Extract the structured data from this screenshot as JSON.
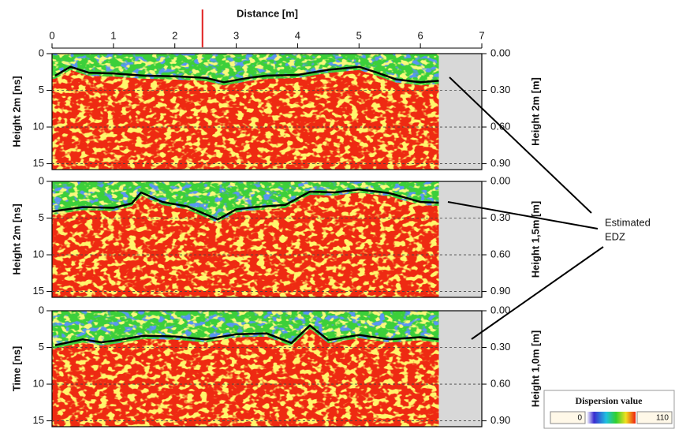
{
  "chart_data": [
    {
      "type": "line",
      "x_label": "Distance [m]",
      "xlim": [
        0,
        7
      ],
      "xticks": [
        0,
        1,
        2,
        3,
        4,
        5,
        6,
        7
      ],
      "marker_x": 2.45,
      "marker_color": "#e02020",
      "scan_end": 6.3,
      "y_inverted": true,
      "grid": true,
      "y_label": "Height 2m [ns]",
      "ylim": [
        0,
        15.8
      ],
      "yticks": [
        0,
        5,
        10,
        15
      ],
      "y2_label": "Height 2m [m]",
      "y2lim": [
        0,
        0.948
      ],
      "y2ticks": [
        {
          "value": 0,
          "label": "0.00"
        },
        {
          "value": 0.3,
          "label": "0.30"
        },
        {
          "value": 0.6,
          "label": "0.60"
        },
        {
          "value": 0.9,
          "label": "0.90"
        }
      ],
      "series": [
        {
          "color": "#000000",
          "x": [
            0.05,
            0.3,
            0.6,
            1.0,
            1.5,
            2.0,
            2.5,
            2.8,
            3.2,
            3.5,
            4.0,
            4.5,
            5.0,
            5.3,
            5.6,
            6.0,
            6.3
          ],
          "values": [
            3.0,
            1.8,
            2.6,
            2.7,
            3.0,
            3.1,
            3.3,
            3.9,
            3.3,
            3.0,
            2.9,
            2.2,
            1.8,
            2.6,
            3.5,
            3.9,
            3.7
          ]
        }
      ]
    },
    {
      "type": "line",
      "xlim": [
        0,
        7
      ],
      "scan_end": 6.3,
      "y_inverted": true,
      "grid": true,
      "y_label": "Height 2m [ns]",
      "ylim": [
        0,
        15.8
      ],
      "yticks": [
        0,
        5,
        10,
        15
      ],
      "y2_label": "Height 1,5m [m]",
      "y2lim": [
        0,
        0.948
      ],
      "y2ticks": [
        {
          "value": 0,
          "label": "0.00"
        },
        {
          "value": 0.3,
          "label": "0.30"
        },
        {
          "value": 0.6,
          "label": "0.60"
        },
        {
          "value": 0.9,
          "label": "0.90"
        }
      ],
      "series": [
        {
          "color": "#000000",
          "x": [
            0.0,
            0.5,
            1.0,
            1.3,
            1.45,
            1.8,
            2.2,
            2.7,
            3.0,
            3.3,
            3.8,
            4.2,
            4.6,
            5.0,
            5.5,
            6.0,
            6.3
          ],
          "values": [
            4.1,
            3.5,
            3.6,
            3.0,
            1.5,
            2.8,
            3.4,
            5.2,
            3.8,
            3.5,
            3.2,
            1.4,
            1.5,
            1.1,
            1.6,
            2.8,
            2.9
          ]
        }
      ]
    },
    {
      "type": "line",
      "xlim": [
        0,
        7
      ],
      "scan_end": 6.3,
      "y_inverted": true,
      "grid": true,
      "y_label": "Time [ns]",
      "ylim": [
        0,
        15.8
      ],
      "yticks": [
        0,
        5,
        10,
        15
      ],
      "y2_label": "Height 1,0m [m]",
      "y2lim": [
        0,
        0.948
      ],
      "y2ticks": [
        {
          "value": 0,
          "label": "0.00"
        },
        {
          "value": 0.3,
          "label": "0.30"
        },
        {
          "value": 0.6,
          "label": "0.60"
        },
        {
          "value": 0.9,
          "label": "0.90"
        }
      ],
      "series": [
        {
          "color": "#000000",
          "x": [
            0.05,
            0.5,
            0.8,
            1.0,
            1.5,
            2.0,
            2.5,
            3.0,
            3.5,
            3.9,
            4.2,
            4.5,
            5.0,
            5.5,
            6.0,
            6.3
          ],
          "values": [
            4.7,
            3.9,
            4.3,
            4.1,
            3.4,
            3.5,
            3.9,
            3.2,
            3.1,
            4.4,
            2.0,
            4.0,
            3.3,
            3.9,
            3.6,
            3.9
          ]
        }
      ]
    }
  ],
  "annotation": {
    "lines": [
      "Estimated",
      "EDZ"
    ]
  },
  "colorbar": {
    "title": "Dispersion value",
    "min_label": "0",
    "max_label": "110"
  }
}
